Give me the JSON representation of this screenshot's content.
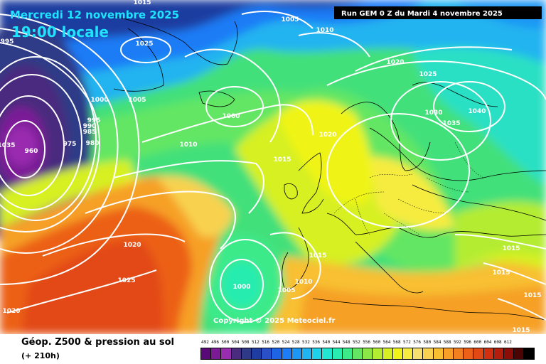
{
  "header": {
    "date": "Mercredi 12 novembre 2025",
    "time": "19:00 locale",
    "run": "Run GEM 0 Z du Mardi 4 novembre 2025"
  },
  "copyright": "Copyright © 2025 Meteociel.fr",
  "footer": {
    "title": "Géop. Z500 & pression au sol",
    "lead": "(+ 210h)"
  },
  "colors": {
    "scale": [
      "#5a0a78",
      "#7a1a96",
      "#9a2cb0",
      "#4a2c7e",
      "#2e3a86",
      "#1f3ca0",
      "#2a50c8",
      "#1e64e6",
      "#1e7cf6",
      "#1e96f4",
      "#20b4f0",
      "#1ed2ea",
      "#22e6d2",
      "#28ecb0",
      "#3cea8a",
      "#64e664",
      "#8ce846",
      "#b4ec32",
      "#d6f024",
      "#f0f418",
      "#f6ec40",
      "#f8e070",
      "#f8d250",
      "#f8c030",
      "#f6a028",
      "#f28020",
      "#ec6018",
      "#e24814",
      "#d22e10",
      "#b41c0c",
      "#8c0c08",
      "#4a0404",
      "#000000"
    ]
  },
  "scale_labels": [
    "492",
    "496",
    "500",
    "504",
    "508",
    "512",
    "516",
    "520",
    "524",
    "528",
    "532",
    "536",
    "540",
    "544",
    "548",
    "552",
    "556",
    "560",
    "564",
    "568",
    "572",
    "576",
    "580",
    "584",
    "588",
    "592",
    "596",
    "600",
    "604",
    "608",
    "612"
  ],
  "isobar_labels": [
    "1015",
    "1005",
    "1010",
    "995",
    "1025",
    "1020",
    "1025",
    "1000",
    "1005",
    "1000",
    "995",
    "990",
    "985",
    "975",
    "980",
    "960",
    "1035",
    "1010",
    "1020",
    "1015",
    "1030",
    "1040",
    "1035",
    "1020",
    "1015",
    "1015",
    "1025",
    "1000",
    "1005",
    "1010",
    "1020",
    "1015",
    "1015",
    "1015"
  ]
}
